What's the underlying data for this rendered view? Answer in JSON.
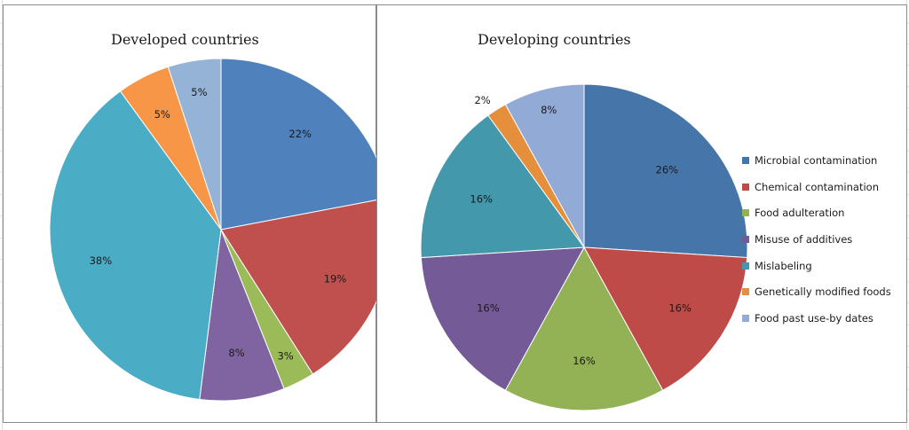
{
  "chart_data": [
    {
      "type": "pie",
      "title": "Developed countries",
      "categories": [
        "Microbial contamination",
        "Chemical contamination",
        "Food adulteration",
        "Misuse of additives",
        "Mislabeling",
        "Genetically modified foods",
        "Food past use-by dates"
      ],
      "values": [
        22,
        19,
        3,
        8,
        38,
        5,
        5
      ],
      "data_labels": [
        "22%",
        "19%",
        "3%",
        "8%",
        "38%",
        "5%",
        "5%"
      ],
      "colors": [
        "#4f81bd",
        "#c0504d",
        "#9bbb59",
        "#8064a2",
        "#4bacc6",
        "#f79646",
        "#95b3d7"
      ],
      "start": "12 o'clock, clockwise"
    },
    {
      "type": "pie",
      "title": "Developing countries",
      "categories": [
        "Microbial contamination",
        "Chemical contamination",
        "Food adulteration",
        "Misuse of additives",
        "Mislabeling",
        "Genetically modified foods",
        "Food past use-by dates"
      ],
      "values": [
        26,
        16,
        16,
        16,
        16,
        2,
        8
      ],
      "data_labels": [
        "26%",
        "16%",
        "16%",
        "16%",
        "16%",
        "2%",
        "8%"
      ],
      "colors": [
        "#4675aa",
        "#be4b48",
        "#92b255",
        "#755a98",
        "#4399ab",
        "#e58f3d",
        "#92aad6"
      ],
      "start": "12 o'clock, clockwise"
    }
  ],
  "legend": {
    "placement": "right",
    "items": [
      {
        "label": "Microbial contamination",
        "color": "#4675aa"
      },
      {
        "label": "Chemical contamination",
        "color": "#be4b48"
      },
      {
        "label": "Food adulteration",
        "color": "#92b255"
      },
      {
        "label": "Misuse of additives",
        "color": "#755a98"
      },
      {
        "label": "Mislabeling",
        "color": "#4399ab"
      },
      {
        "label": "Genetically modified foods",
        "color": "#e58f3d"
      },
      {
        "label": "Food past use-by dates",
        "color": "#92aad6"
      }
    ]
  }
}
